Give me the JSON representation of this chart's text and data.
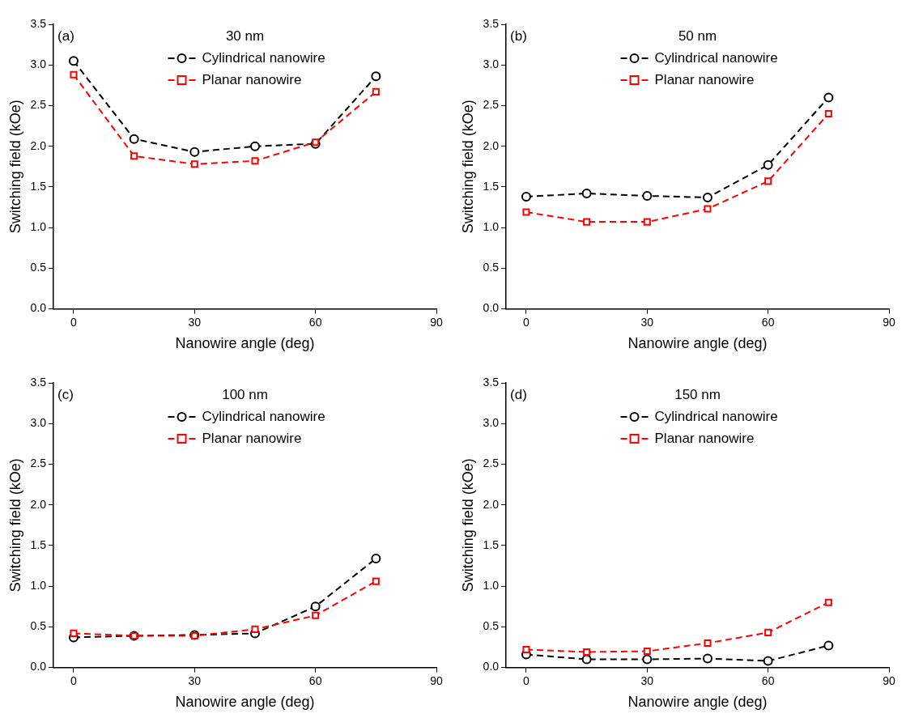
{
  "chart_data": [
    {
      "type": "line",
      "title": "30 nm",
      "annotations": [
        "(a)"
      ],
      "xlabel": "Nanowire angle (deg)",
      "ylabel": "Switching field (kOe)",
      "x": [
        0,
        15,
        30,
        45,
        60,
        75
      ],
      "xlim": [
        -5,
        90
      ],
      "xticks": [
        0,
        30,
        60,
        90
      ],
      "ylim": [
        0,
        3.5
      ],
      "yticks": [
        {
          "value": 0,
          "label": "0.0"
        },
        0.5,
        {
          "value": 1,
          "label": "1.0"
        },
        1.5,
        {
          "value": 2,
          "label": "2.0"
        },
        2.5,
        {
          "value": 3,
          "label": "3.0"
        },
        3.5
      ],
      "grid": false,
      "legend": "top",
      "line_style": "dashed",
      "series": [
        {
          "name": "Cylindrical nanowire",
          "color": "#000000",
          "marker": "circle",
          "values": [
            3.05,
            2.09,
            1.93,
            2.0,
            2.03,
            2.86
          ]
        },
        {
          "name": "Planar nanowire",
          "color": "#ff0000",
          "marker": "square",
          "values": [
            2.88,
            1.88,
            1.78,
            1.82,
            2.05,
            2.67
          ]
        }
      ]
    },
    {
      "type": "line",
      "title": "50 nm",
      "annotations": [
        "(b)"
      ],
      "xlabel": "Nanowire angle (deg)",
      "ylabel": "Switching field (kOe)",
      "x": [
        0,
        15,
        30,
        45,
        60,
        75
      ],
      "xlim": [
        -5,
        90
      ],
      "xticks": [
        0,
        30,
        60,
        90
      ],
      "ylim": [
        0,
        3.5
      ],
      "yticks": [
        {
          "value": 0,
          "label": "0.0"
        },
        0.5,
        {
          "value": 1,
          "label": "1.0"
        },
        1.5,
        {
          "value": 2,
          "label": "2.0"
        },
        2.5,
        {
          "value": 3,
          "label": "3.0"
        },
        3.5
      ],
      "grid": false,
      "legend": "top",
      "line_style": "dashed",
      "series": [
        {
          "name": "Cylindrical nanowire",
          "color": "#000000",
          "marker": "circle",
          "values": [
            1.38,
            1.42,
            1.39,
            1.37,
            1.77,
            2.6
          ]
        },
        {
          "name": "Planar nanowire",
          "color": "#ff0000",
          "marker": "square",
          "values": [
            1.19,
            1.07,
            1.07,
            1.23,
            1.57,
            2.4
          ]
        }
      ]
    },
    {
      "type": "line",
      "title": "100 nm",
      "annotations": [
        "(c)"
      ],
      "xlabel": "Nanowire angle (deg)",
      "ylabel": "Switching field (kOe)",
      "x": [
        0,
        15,
        30,
        45,
        60,
        75
      ],
      "xlim": [
        -5,
        90
      ],
      "xticks": [
        0,
        30,
        60,
        90
      ],
      "ylim": [
        0,
        3.5
      ],
      "yticks": [
        {
          "value": 0,
          "label": "0.0"
        },
        0.5,
        {
          "value": 1,
          "label": "1.0"
        },
        1.5,
        {
          "value": 2,
          "label": "2.0"
        },
        2.5,
        {
          "value": 3,
          "label": "3.0"
        },
        3.5
      ],
      "grid": false,
      "legend": "top",
      "line_style": "dashed",
      "series": [
        {
          "name": "Cylindrical nanowire",
          "color": "#000000",
          "marker": "circle",
          "values": [
            0.37,
            0.39,
            0.4,
            0.42,
            0.75,
            1.34
          ]
        },
        {
          "name": "Planar nanowire",
          "color": "#ff0000",
          "marker": "square",
          "values": [
            0.42,
            0.39,
            0.39,
            0.47,
            0.64,
            1.06
          ]
        }
      ]
    },
    {
      "type": "line",
      "title": "150 nm",
      "annotations": [
        "(d)"
      ],
      "xlabel": "Nanowire angle (deg)",
      "ylabel": "Switching field (kOe)",
      "x": [
        0,
        15,
        30,
        45,
        60,
        75
      ],
      "xlim": [
        -5,
        90
      ],
      "xticks": [
        0,
        30,
        60,
        90
      ],
      "ylim": [
        0,
        3.5
      ],
      "yticks": [
        {
          "value": 0,
          "label": "0.0"
        },
        0.5,
        {
          "value": 1,
          "label": "1.0"
        },
        1.5,
        {
          "value": 2,
          "label": "2.0"
        },
        2.5,
        {
          "value": 3,
          "label": "3.0"
        },
        3.5
      ],
      "grid": false,
      "legend": "top",
      "line_style": "dashed",
      "series": [
        {
          "name": "Cylindrical nanowire",
          "color": "#000000",
          "marker": "circle",
          "values": [
            0.16,
            0.1,
            0.1,
            0.11,
            0.08,
            0.27
          ]
        },
        {
          "name": "Planar nanowire",
          "color": "#ff0000",
          "marker": "square",
          "values": [
            0.22,
            0.19,
            0.2,
            0.3,
            0.43,
            0.8
          ]
        }
      ]
    }
  ]
}
